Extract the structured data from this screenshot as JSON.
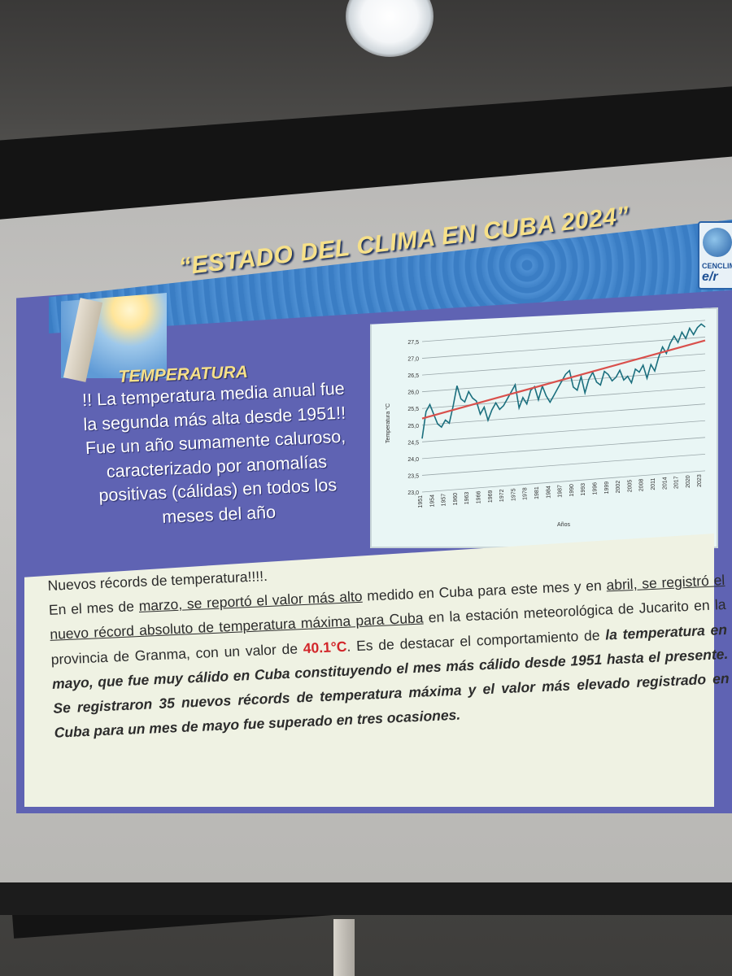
{
  "slide": {
    "title": "“ESTADO DEL CLIMA EN CUBA 2024”",
    "section_heading": "TEMPERATURA",
    "summary_lines": [
      "!! La temperatura media anual fue",
      "la segunda más alta desde 1951!!",
      "Fue un año sumamente caluroso,",
      "caracterizado por anomalías",
      "positivas (cálidas) en todos los",
      "meses del año"
    ],
    "logo": {
      "text_small": "CENCLIM",
      "text_large": "e/r"
    },
    "body": {
      "headline": "Nuevos récords de temperatura!!!!.",
      "p1_pre": "En el mes de ",
      "p1_u1": "marzo, se reportó el valor más alto",
      "p1_mid": " medido en Cuba para este mes y en ",
      "p1_u2": "abril, se registró el nuevo récord absoluto de temperatura máxima para Cuba",
      "p1_post": " en la estación meteorológica de Jucarito en la provincia de Granma, con un valor de ",
      "p1_value": "40.1°C",
      "p1_tail": ". Es de destacar el comportamiento de ",
      "p1_bold": "la temperatura en mayo, que fue muy cálido en Cuba constituyendo el mes más cálido desde 1951 hasta el presente. Se registraron 35 nuevos récords de temperatura máxima y el valor más elevado registrado en Cuba para un mes de mayo fue superado en tres ocasiones."
    }
  },
  "colors": {
    "slide_bg": "#5f63b3",
    "heading_yellow": "#f6e089",
    "series_line": "#1b6f7e",
    "trend_line": "#d9504c",
    "highlight_red": "#d2262a"
  },
  "chart_data": {
    "type": "line",
    "title": "",
    "xlabel": "Años",
    "ylabel": "Temperatura °C",
    "ylim": [
      23.0,
      27.5
    ],
    "yticks": [
      "23,0",
      "23,5",
      "24,0",
      "24,5",
      "25,0",
      "25,5",
      "26,0",
      "26,5",
      "27,0",
      "27,5"
    ],
    "xticks": [
      "1951",
      "1954",
      "1957",
      "1960",
      "1963",
      "1966",
      "1969",
      "1972",
      "1975",
      "1978",
      "1981",
      "1984",
      "1987",
      "1990",
      "1993",
      "1996",
      "1999",
      "2002",
      "2005",
      "2008",
      "2011",
      "2014",
      "2017",
      "2020",
      "2023"
    ],
    "grid": true,
    "series": [
      {
        "x": [
          1951,
          1952,
          1953,
          1954,
          1955,
          1956,
          1957,
          1958,
          1959,
          1960,
          1961,
          1962,
          1963,
          1964,
          1965,
          1966,
          1967,
          1968,
          1969,
          1970,
          1971,
          1972,
          1973,
          1974,
          1975,
          1976,
          1977,
          1978,
          1979,
          1980,
          1981,
          1982,
          1983,
          1984,
          1985,
          1986,
          1987,
          1988,
          1989,
          1990,
          1991,
          1992,
          1993,
          1994,
          1995,
          1996,
          1997,
          1998,
          1999,
          2000,
          2001,
          2002,
          2003,
          2004,
          2005,
          2006,
          2007,
          2008,
          2009,
          2010,
          2011,
          2012,
          2013,
          2014,
          2015,
          2016,
          2017,
          2018,
          2019,
          2020,
          2021,
          2022,
          2023,
          2024
        ],
        "values": [
          24.6,
          25.4,
          25.6,
          25.3,
          25.0,
          24.9,
          25.1,
          25.0,
          25.5,
          26.1,
          25.7,
          25.6,
          25.9,
          25.7,
          25.6,
          25.2,
          25.4,
          25.0,
          25.3,
          25.5,
          25.3,
          25.4,
          25.6,
          25.8,
          26.0,
          25.3,
          25.6,
          25.4,
          25.8,
          25.9,
          25.5,
          25.9,
          25.6,
          25.4,
          25.6,
          25.8,
          26.0,
          26.2,
          26.3,
          25.8,
          25.7,
          26.1,
          25.6,
          26.0,
          26.2,
          25.9,
          25.8,
          26.2,
          26.1,
          25.9,
          26.0,
          26.2,
          25.9,
          26.0,
          25.8,
          26.2,
          26.1,
          26.3,
          25.9,
          26.3,
          26.1,
          26.5,
          26.8,
          26.6,
          26.9,
          27.1,
          26.9,
          27.2,
          27.0,
          27.3,
          27.1,
          27.3,
          27.4,
          27.3
        ]
      },
      {
        "x": [
          1951,
          2024
        ],
        "values": [
          25.2,
          26.9
        ]
      }
    ]
  }
}
